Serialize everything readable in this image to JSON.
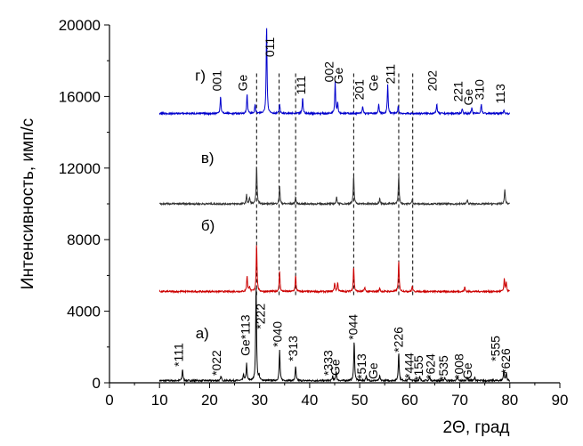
{
  "chart_data": {
    "type": "line",
    "xlabel": "2Θ, град",
    "ylabel": "Интенсивность, имп/с",
    "xlim": [
      0,
      90
    ],
    "ylim": [
      0,
      20000
    ],
    "xticks": [
      "0",
      "10",
      "20",
      "30",
      "40",
      "50",
      "60",
      "70",
      "80",
      "90"
    ],
    "yticks": [
      "0",
      "4000",
      "8000",
      "12000",
      "16000",
      "20000"
    ],
    "grid": false,
    "colors": {
      "axis": "#000000",
      "black": "#000000",
      "red": "#cc0000",
      "blue": "#0000cc"
    },
    "reference_lines": [
      29.4,
      33.9,
      37.2,
      48.8,
      57.8,
      60.6
    ],
    "series": [
      {
        "label": "а)",
        "label_pos": [
          17.2,
          2500
        ],
        "color": "#000000",
        "baseline": 120,
        "x_range": [
          10,
          80
        ],
        "peaks": [
          [
            14.6,
            650
          ],
          [
            22.3,
            260
          ],
          [
            26.8,
            350
          ],
          [
            27.4,
            950
          ],
          [
            29.3,
            5400
          ],
          [
            29.9,
            250
          ],
          [
            34.0,
            1700
          ],
          [
            37.2,
            800
          ],
          [
            44.6,
            260
          ],
          [
            45.3,
            550
          ],
          [
            48.9,
            2250
          ],
          [
            51.3,
            300
          ],
          [
            54.0,
            250
          ],
          [
            57.8,
            1600
          ],
          [
            59.9,
            220
          ],
          [
            62.0,
            200
          ],
          [
            64.0,
            200
          ],
          [
            67.0,
            190
          ],
          [
            69.5,
            190
          ],
          [
            71.5,
            200
          ],
          [
            73.0,
            190
          ],
          [
            78.8,
            600
          ],
          [
            79.3,
            450
          ]
        ],
        "peak_labels": [
          {
            "text": "*111",
            "x": 14.7,
            "y": 900
          },
          {
            "text": "*022",
            "x": 22.2,
            "y": 400
          },
          {
            "text": "Ge*113",
            "x": 28.0,
            "y": 1500
          },
          {
            "text": "*222",
            "x": 31.0,
            "y": 3000
          },
          {
            "text": "*040",
            "x": 34.4,
            "y": 2000
          },
          {
            "text": "*313",
            "x": 37.5,
            "y": 1200
          },
          {
            "text": "*333",
            "x": 44.6,
            "y": 400
          },
          {
            "text": "Ge",
            "x": 46.0,
            "y": 400
          },
          {
            "text": "*044",
            "x": 49.5,
            "y": 2400
          },
          {
            "text": "*513",
            "x": 51.2,
            "y": 200
          },
          {
            "text": "Ge",
            "x": 53.5,
            "y": 200
          },
          {
            "text": "*226",
            "x": 58.6,
            "y": 1700
          },
          {
            "text": "*444",
            "x": 60.7,
            "y": 250
          },
          {
            "text": "*155",
            "x": 62.6,
            "y": 100
          },
          {
            "text": "*624",
            "x": 65.0,
            "y": 200
          },
          {
            "text": "*535",
            "x": 67.6,
            "y": 100
          },
          {
            "text": "*008",
            "x": 70.7,
            "y": 200
          },
          {
            "text": "Ge",
            "x": 72.4,
            "y": 200
          },
          {
            "text": "*555",
            "x": 78.0,
            "y": 1200
          },
          {
            "text": "*626",
            "x": 80.0,
            "y": 500
          }
        ]
      },
      {
        "label": "б)",
        "label_pos": [
          18.3,
          8500
        ],
        "color": "#cc0000",
        "baseline": 5100,
        "x_range": [
          10,
          80
        ],
        "peaks": [
          [
            27.5,
            900
          ],
          [
            28.0,
            300
          ],
          [
            29.4,
            2700
          ],
          [
            34.0,
            1100
          ],
          [
            37.2,
            900
          ],
          [
            45.0,
            500
          ],
          [
            45.6,
            500
          ],
          [
            48.8,
            1400
          ],
          [
            51.0,
            250
          ],
          [
            54.0,
            200
          ],
          [
            57.8,
            1700
          ],
          [
            60.5,
            300
          ],
          [
            71.0,
            250
          ],
          [
            78.9,
            700
          ],
          [
            79.3,
            500
          ]
        ],
        "peak_labels": []
      },
      {
        "label": "в)",
        "label_pos": [
          18.3,
          12300
        ],
        "color": "#333333",
        "baseline": 10000,
        "x_range": [
          10,
          80
        ],
        "peaks": [
          [
            27.4,
            500
          ],
          [
            28.0,
            350
          ],
          [
            29.4,
            2200
          ],
          [
            34.0,
            1000
          ],
          [
            37.2,
            400
          ],
          [
            45.4,
            400
          ],
          [
            48.8,
            1600
          ],
          [
            54.0,
            350
          ],
          [
            57.8,
            1600
          ],
          [
            60.5,
            250
          ],
          [
            71.5,
            250
          ],
          [
            79.0,
            850
          ]
        ],
        "peak_labels": []
      },
      {
        "label": "г)",
        "label_pos": [
          17.1,
          16900
        ],
        "color": "#0000cc",
        "baseline": 15050,
        "x_range": [
          10,
          80
        ],
        "peaks": [
          [
            22.2,
            1000
          ],
          [
            27.5,
            1100
          ],
          [
            29.1,
            500
          ],
          [
            31.4,
            5000
          ],
          [
            34.0,
            500
          ],
          [
            38.6,
            900
          ],
          [
            45.1,
            1800
          ],
          [
            45.6,
            600
          ],
          [
            50.6,
            400
          ],
          [
            53.8,
            500
          ],
          [
            55.6,
            1600
          ],
          [
            57.7,
            400
          ],
          [
            65.4,
            550
          ],
          [
            70.5,
            300
          ],
          [
            72.4,
            300
          ],
          [
            74.3,
            550
          ],
          [
            78.8,
            200
          ]
        ],
        "peak_labels": [
          {
            "text": "001",
            "x": 22.3,
            "y": 16300
          },
          {
            "text": "Ge",
            "x": 27.5,
            "y": 16300
          },
          {
            "text": "011",
            "x": 32.9,
            "y": 18200
          },
          {
            "text": "111",
            "x": 39.1,
            "y": 16100
          },
          {
            "text": "002",
            "x": 44.7,
            "y": 16800
          },
          {
            "text": "Ge",
            "x": 46.6,
            "y": 16700
          },
          {
            "text": "201",
            "x": 50.8,
            "y": 15800
          },
          {
            "text": "Ge",
            "x": 53.6,
            "y": 16300
          },
          {
            "text": "211",
            "x": 57.0,
            "y": 16700
          },
          {
            "text": "202",
            "x": 65.4,
            "y": 16300
          },
          {
            "text": "221",
            "x": 70.5,
            "y": 15700
          },
          {
            "text": "Ge",
            "x": 72.6,
            "y": 15500
          },
          {
            "text": "310",
            "x": 74.8,
            "y": 15800
          },
          {
            "text": "113",
            "x": 79.0,
            "y": 15600
          }
        ]
      }
    ]
  }
}
